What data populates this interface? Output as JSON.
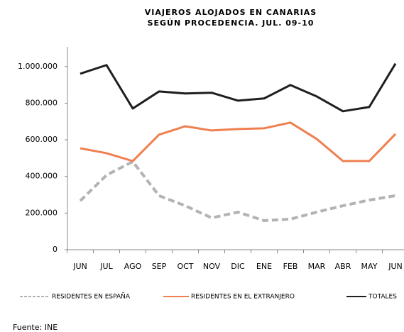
{
  "chart_data": {
    "type": "line",
    "title": "VIAJEROS ALOJADOS EN CANARIAS",
    "subtitle": "SEGÚN PROCEDENCIA. JUL. 09-10",
    "categories": [
      "JUN",
      "JUL",
      "AGO",
      "SEP",
      "OCT",
      "NOV",
      "DIC",
      "ENE",
      "FEB",
      "MAR",
      "ABR",
      "MAY",
      "JUN"
    ],
    "series": [
      {
        "name": "RESIDENTES EN ESPAÑA",
        "color": "#b3b3b3",
        "dashed": true,
        "values": [
          267000,
          407000,
          481000,
          295000,
          240000,
          174000,
          205000,
          159000,
          167000,
          205000,
          240000,
          271000,
          295000
        ]
      },
      {
        "name": "RESIDENTES EN EL EXTRANJERO",
        "color": "#f07f50",
        "values": [
          554000,
          527000,
          484000,
          628000,
          674000,
          651000,
          659000,
          663000,
          694000,
          605000,
          484000,
          484000,
          632000
        ]
      },
      {
        "name": "TOTALES",
        "color": "#1f1f1f",
        "values": [
          961000,
          1008000,
          771000,
          864000,
          853000,
          857000,
          814000,
          826000,
          899000,
          837000,
          756000,
          779000,
          1016000
        ]
      }
    ],
    "ylim": [
      0,
      1100000
    ],
    "yticks": [
      0,
      {
        "value": 200000,
        "label": "200.000"
      },
      {
        "value": 400000,
        "label": "400.000"
      },
      {
        "value": 600000,
        "label": "600.000"
      },
      {
        "value": 800000,
        "label": "800.000"
      },
      {
        "value": 1000000,
        "label": "1.000.000"
      }
    ],
    "legend": "bottom",
    "source": "Fuente: INE"
  }
}
